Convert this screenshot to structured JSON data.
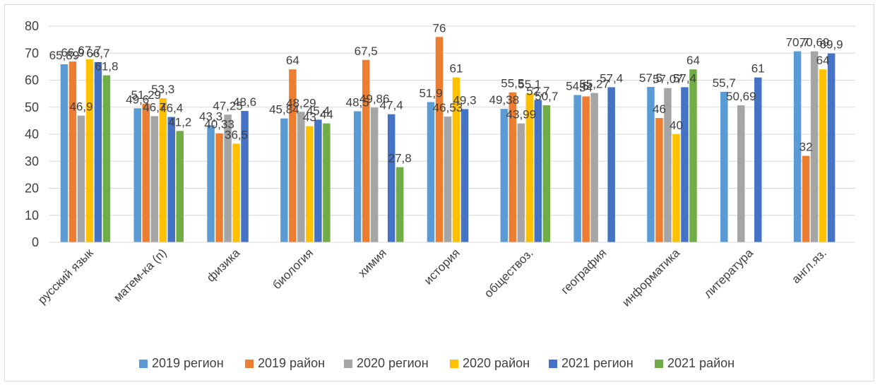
{
  "chart_data": {
    "type": "bar",
    "title": "",
    "xlabel": "",
    "ylabel": "",
    "ylim": [
      0,
      80
    ],
    "yticks": [
      0,
      10,
      20,
      30,
      40,
      50,
      60,
      70,
      80
    ],
    "grid": true,
    "legend_position": "bottom",
    "categories": [
      "русский язык",
      "матем-ка (п)",
      "физика",
      "биология",
      "химия",
      "история",
      "обществоз.",
      "география",
      "информатика",
      "литература",
      "англ.яз."
    ],
    "series": [
      {
        "name": "2019 регион",
        "color": "#5b9bd5",
        "values": [
          65.89,
          49.6,
          43.3,
          45.84,
          48.5,
          51.9,
          49.38,
          54.5,
          57.5,
          55.7,
          70.7
        ],
        "labels": [
          "65,89",
          "49,6",
          "43,3",
          "45,84",
          "48,5",
          "51,9",
          "49,38",
          "54,5",
          "57,5",
          "55,7",
          "70,7"
        ]
      },
      {
        "name": "2019 район",
        "color": "#ed7d31",
        "values": [
          66.9,
          51.29,
          40.33,
          64,
          67.5,
          76,
          55.5,
          54,
          46,
          null,
          32
        ],
        "labels": [
          "66,9",
          "51,29",
          "40,33",
          "64",
          "67,5",
          "76",
          "55,5",
          "54",
          "46",
          "",
          "32"
        ]
      },
      {
        "name": "2020 регион",
        "color": "#a5a5a5",
        "values": [
          46.9,
          46.7,
          47.25,
          48.29,
          49.86,
          46.53,
          43.99,
          55.27,
          57.07,
          50.69,
          70.69
        ],
        "labels": [
          "46,9",
          "46,7",
          "47,25",
          "48,29",
          "49,86",
          "46,53",
          "43,99",
          "55,27",
          "57,07",
          "50,69",
          "70,69"
        ]
      },
      {
        "name": "2020 район",
        "color": "#ffc000",
        "values": [
          67.7,
          53.3,
          36.5,
          43,
          null,
          61,
          55.1,
          null,
          40,
          null,
          64
        ],
        "labels": [
          "67,7",
          "53,3",
          "36,5",
          "43",
          "",
          "61",
          "55,1",
          "",
          "40",
          "",
          "64"
        ]
      },
      {
        "name": "2021 регион",
        "color": "#4472c4",
        "values": [
          66.7,
          46.4,
          48.6,
          45.4,
          47.4,
          49.3,
          52.7,
          57.4,
          57.4,
          61,
          69.9
        ],
        "labels": [
          "66,7",
          "46,4",
          "48,6",
          "45,4",
          "47,4",
          "49,3",
          "52,7",
          "57,4",
          "57,4",
          "61",
          "69,9"
        ]
      },
      {
        "name": "2021 район",
        "color": "#70ad47",
        "values": [
          61.8,
          41.2,
          null,
          44,
          27.8,
          null,
          50.7,
          null,
          64,
          null,
          null
        ],
        "labels": [
          "61,8",
          "41,2",
          "",
          "44",
          "27,8",
          "",
          "50,7",
          "",
          "64",
          "",
          ""
        ]
      }
    ]
  }
}
